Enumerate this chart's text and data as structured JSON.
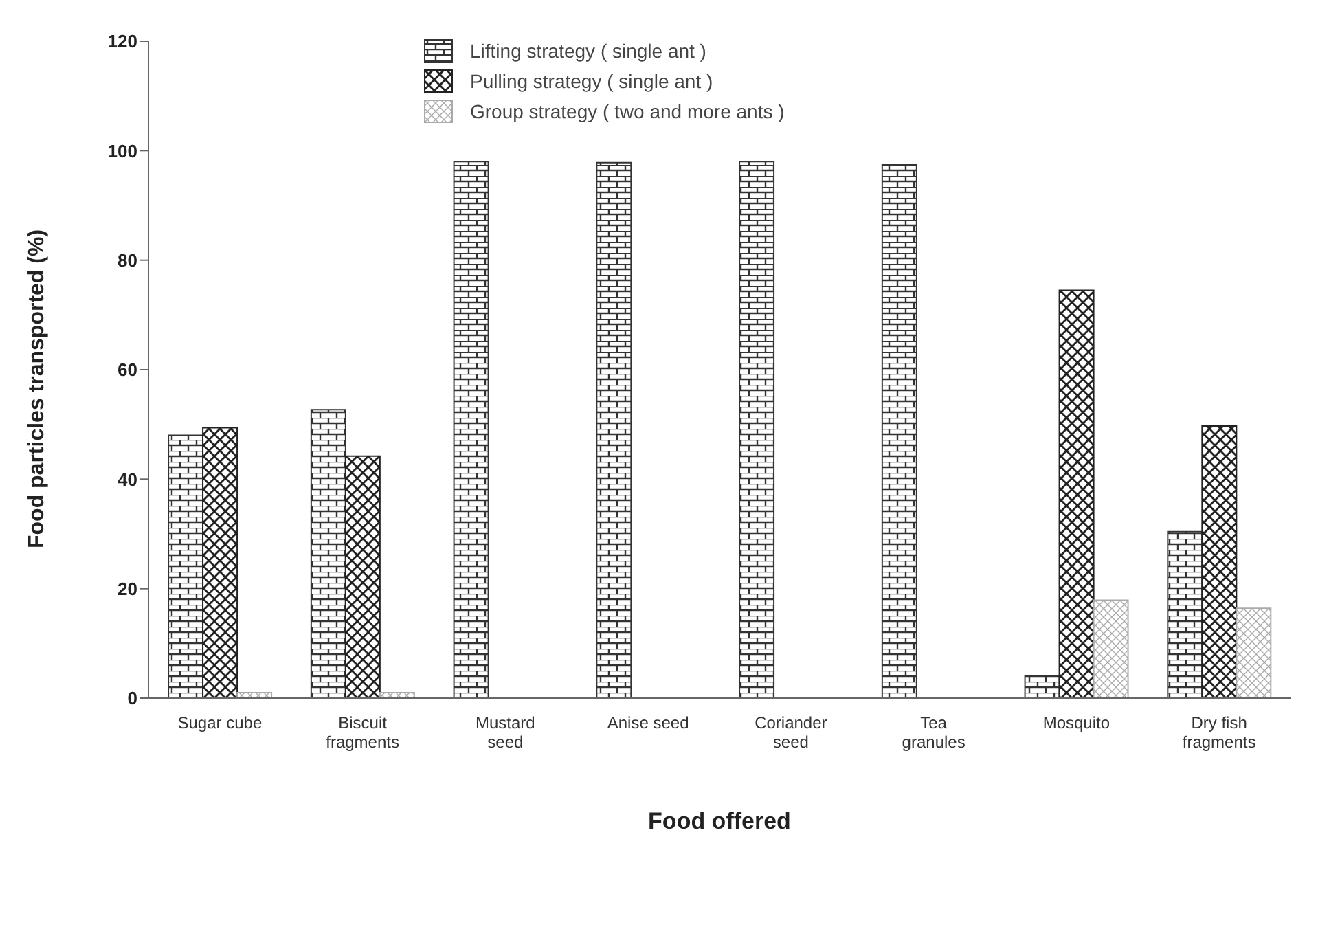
{
  "chart_data": {
    "type": "bar",
    "xlabel": "Food offered",
    "ylabel": "Food particles transported (%)",
    "categories": [
      "Sugar cube",
      "Biscuit fragments",
      "Mustard seed",
      "Anise seed",
      "Coriander seed",
      "Tea granules",
      "Mosquito",
      "Dry fish fragments"
    ],
    "series": [
      {
        "name": "Lifting strategy ( single ant )",
        "color": "#333333",
        "values": [
          48,
          52.7,
          98,
          97.8,
          98,
          97.4,
          4.1,
          30.4
        ]
      },
      {
        "name": "Pulling strategy ( single ant )",
        "color": "#222222",
        "values": [
          49.4,
          44.2,
          null,
          null,
          null,
          null,
          74.5,
          49.7
        ]
      },
      {
        "name": "Group strategy ( two and more ants )",
        "color": "#aaaaaa",
        "values": [
          1,
          1,
          null,
          null,
          null,
          null,
          17.9,
          16.4
        ]
      }
    ],
    "ylim": [
      0,
      120
    ],
    "yticks": [
      0,
      20,
      40,
      60,
      80,
      100,
      120
    ],
    "grid": false,
    "legend": "top"
  }
}
